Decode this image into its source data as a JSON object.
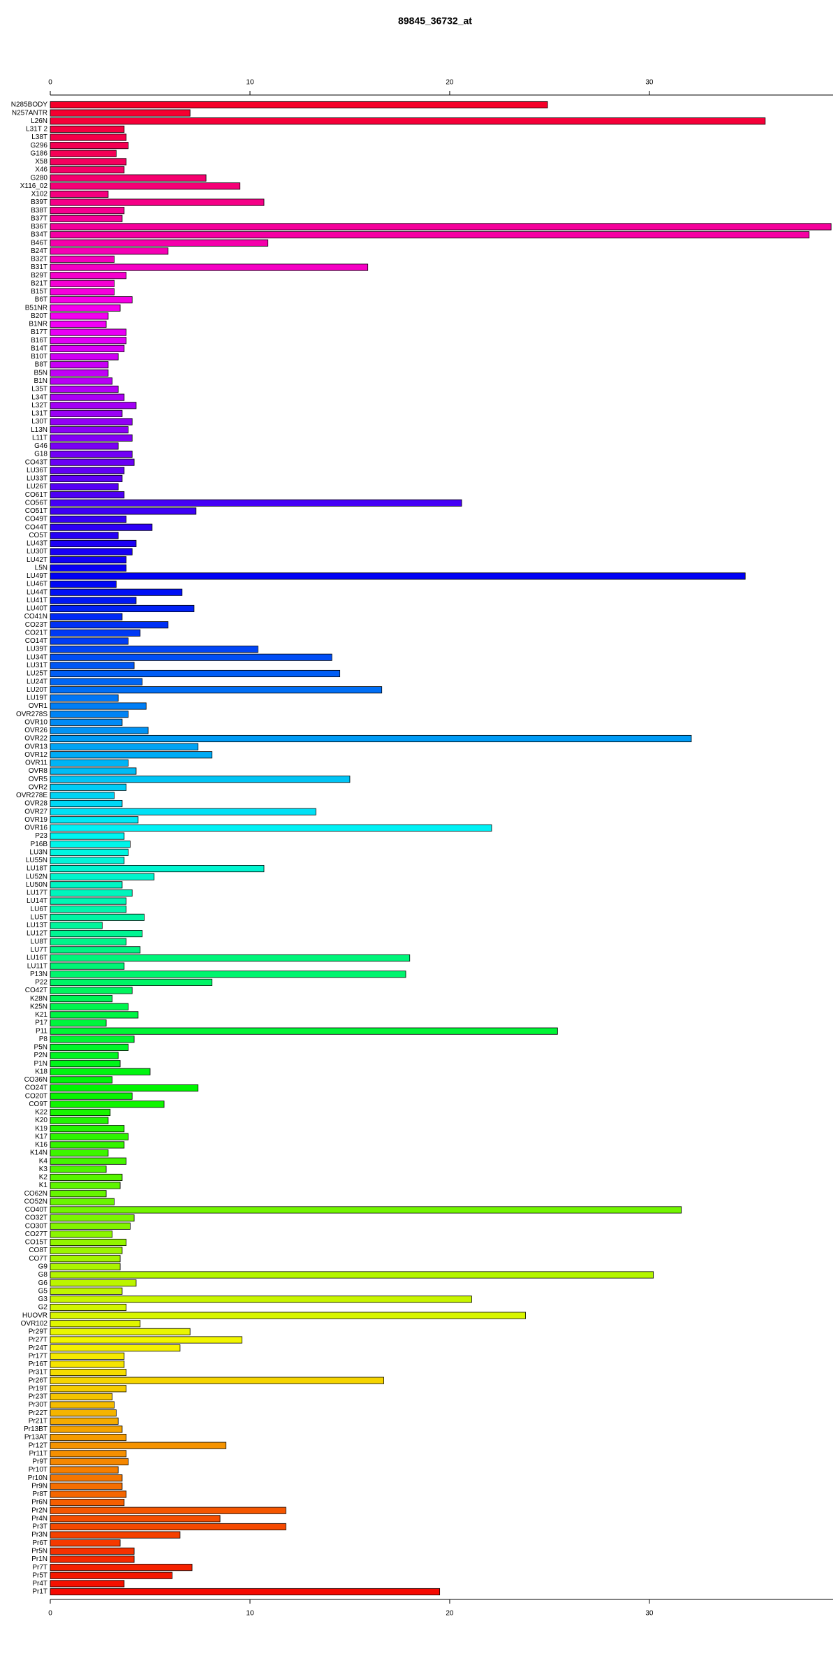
{
  "chart_data": {
    "type": "barh",
    "title": "89845_36732_at",
    "categories": [
      "N285BODY",
      "N257ANTR",
      "L26N",
      "L31T 2",
      "L38T",
      "G296",
      "G186",
      "X58",
      "X46",
      "G280",
      "X116_02",
      "X102",
      "B39T",
      "B38T",
      "B37T",
      "B36T",
      "B34T",
      "B46T",
      "B24T",
      "B32T",
      "B31T",
      "B29T",
      "B21T",
      "B15T",
      "B6T",
      "B51NR",
      "B20T",
      "B1NR",
      "B17T",
      "B16T",
      "B14T",
      "B10T",
      "B8T",
      "B5N",
      "B1N",
      "L35T",
      "L34T",
      "L32T",
      "L31T",
      "L30T",
      "L13N",
      "L11T",
      "G46",
      "G18",
      "CO43T",
      "LU36T",
      "LU33T",
      "LU26T",
      "CO61T",
      "CO56T",
      "CO51T",
      "CO49T",
      "CO44T",
      "CO5T",
      "LU43T",
      "LU30T",
      "LU42T",
      "L5N",
      "LU49T",
      "LU46T",
      "LU44T",
      "LU41T",
      "LU40T",
      "CO41N",
      "CO23T",
      "CO21T",
      "CO14T",
      "LU39T",
      "LU34T",
      "LU31T",
      "LU25T",
      "LU24T",
      "LU20T",
      "LU19T",
      "OVR1",
      "OVR278S",
      "OVR10",
      "OVR26",
      "OVR22",
      "OVR13",
      "OVR12",
      "OVR11",
      "OVR8",
      "OVR5",
      "OVR2",
      "OVR278E",
      "OVR28",
      "OVR27",
      "OVR19",
      "OVR16",
      "P23",
      "P16B",
      "LU3N",
      "LU55N",
      "LU18T",
      "LU52N",
      "LU50N",
      "LU17T",
      "LU14T",
      "LU6T",
      "LU5T",
      "LU13T",
      "LU12T",
      "LU8T",
      "LU7T",
      "LU16T",
      "LU11T",
      "P13N",
      "P22",
      "CO42T",
      "K28N",
      "K25N",
      "K21",
      "P17",
      "P11",
      "P8",
      "P5N",
      "P2N",
      "P1N",
      "K18",
      "CO36N",
      "CO24T",
      "CO20T",
      "CO9T",
      "K22",
      "K20",
      "K19",
      "K17",
      "K16",
      "K14N",
      "K4",
      "K3",
      "K2",
      "K1",
      "CO62N",
      "CO52N",
      "CO40T",
      "CO32T",
      "CO30T",
      "CO27T",
      "CO15T",
      "CO8T",
      "CO7T",
      "G9",
      "G8",
      "G6",
      "G5",
      "G3",
      "G2",
      "HUOVR",
      "OVR102",
      "Pr29T",
      "Pr27T",
      "Pr24T",
      "Pr17T",
      "Pr16T",
      "Pr31T",
      "Pr26T",
      "Pr19T",
      "Pr23T",
      "Pr30T",
      "Pr22T",
      "Pr21T",
      "Pr13BT",
      "Pr13AT",
      "Pr12T",
      "Pr11T",
      "Pr9T",
      "Pr10T",
      "Pr10N",
      "Pr9N",
      "Pr8T",
      "Pr6N",
      "Pr2N",
      "Pr4N",
      "Pr3T",
      "Pr3N",
      "Pr6T",
      "Pr5N",
      "Pr1N",
      "Pr7T",
      "Pr5T",
      "Pr4T",
      "Pr1T"
    ],
    "values": [
      24.9,
      7.0,
      35.8,
      3.7,
      3.8,
      3.9,
      3.3,
      3.8,
      3.7,
      7.8,
      9.5,
      2.9,
      10.7,
      3.7,
      3.6,
      39.1,
      38.0,
      10.9,
      5.9,
      3.2,
      15.9,
      3.8,
      3.2,
      3.2,
      4.1,
      3.5,
      2.9,
      2.8,
      3.8,
      3.8,
      3.7,
      3.4,
      2.9,
      2.9,
      3.1,
      3.4,
      3.7,
      4.3,
      3.6,
      4.1,
      3.9,
      4.1,
      3.4,
      4.1,
      4.2,
      3.7,
      3.6,
      3.4,
      3.7,
      20.6,
      7.3,
      3.8,
      5.1,
      3.4,
      4.3,
      4.1,
      3.8,
      3.8,
      34.8,
      3.3,
      6.6,
      4.3,
      7.2,
      3.6,
      5.9,
      4.5,
      3.9,
      10.4,
      14.1,
      4.2,
      14.5,
      4.6,
      16.6,
      3.4,
      4.8,
      3.9,
      3.6,
      4.9,
      32.1,
      7.4,
      8.1,
      3.9,
      4.3,
      15.0,
      3.8,
      3.2,
      3.6,
      13.3,
      4.4,
      22.1,
      3.7,
      4.0,
      3.9,
      3.7,
      10.7,
      5.2,
      3.6,
      4.1,
      3.8,
      3.8,
      4.7,
      2.6,
      4.6,
      3.8,
      4.5,
      18.0,
      3.7,
      17.8,
      8.1,
      4.1,
      3.1,
      3.9,
      4.4,
      2.8,
      25.4,
      4.2,
      3.9,
      3.4,
      3.5,
      5.0,
      3.1,
      7.4,
      4.1,
      5.7,
      3.0,
      2.9,
      3.7,
      3.9,
      3.7,
      2.9,
      3.8,
      2.8,
      3.6,
      3.5,
      2.8,
      3.2,
      31.6,
      4.2,
      4.0,
      3.1,
      3.8,
      3.6,
      3.5,
      3.5,
      30.2,
      4.3,
      3.6,
      21.1,
      3.8,
      23.8,
      4.5,
      7.0,
      9.6,
      6.5,
      3.7,
      3.7,
      3.8,
      16.7,
      3.8,
      3.1,
      3.2,
      3.3,
      3.4,
      3.6,
      3.8,
      8.8,
      3.8,
      3.9,
      3.4,
      3.6,
      3.6,
      3.8,
      3.7,
      11.8,
      8.5,
      11.8,
      6.5,
      3.5,
      4.2,
      4.2,
      7.1,
      6.1,
      3.7,
      19.5
    ],
    "colors": [
      "hsl(350,100%,48%)",
      "hsl(348,100%,48%)",
      "hsl(346,100%,48%)",
      "hsl(344,100%,48%)",
      "hsl(342,100%,48%)",
      "hsl(340,100%,48%)",
      "hsl(339,100%,48%)",
      "hsl(337,100%,48%)",
      "hsl(335,100%,48%)",
      "hsl(333,100%,48%)",
      "hsl(331,100%,48%)",
      "hsl(329,100%,48%)",
      "hsl(327,100%,48%)",
      "hsl(325,100%,48%)",
      "hsl(323,100%,48%)",
      "hsl(322,100%,48%)",
      "hsl(320,100%,48%)",
      "hsl(318,100%,48%)",
      "hsl(316,100%,48%)",
      "hsl(314,100%,48%)",
      "hsl(312,100%,48%)",
      "hsl(310,100%,48%)",
      "hsl(308,100%,48%)",
      "hsl(306,100%,48%)",
      "hsl(304,100%,48%)",
      "hsl(302,100%,48%)",
      "hsl(301,100%,48%)",
      "hsl(299,100%,48%)",
      "hsl(297,100%,48%)",
      "hsl(295,100%,48%)",
      "hsl(293,100%,48%)",
      "hsl(291,100%,48%)",
      "hsl(289,100%,48%)",
      "hsl(287,100%,48%)",
      "hsl(285,100%,48%)",
      "hsl(284,100%,48%)",
      "hsl(282,100%,48%)",
      "hsl(280,100%,48%)",
      "hsl(278,100%,48%)",
      "hsl(276,100%,48%)",
      "hsl(274,100%,48%)",
      "hsl(272,100%,48%)",
      "hsl(270,100%,48%)",
      "hsl(268,100%,48%)",
      "hsl(266,100%,48%)",
      "hsl(264,100%,48%)",
      "hsl(263,100%,48%)",
      "hsl(261,100%,48%)",
      "hsl(259,100%,48%)",
      "hsl(257,100%,48%)",
      "hsl(255,100%,48%)",
      "hsl(253,100%,48%)",
      "hsl(251,100%,48%)",
      "hsl(249,100%,48%)",
      "hsl(247,100%,48%)",
      "hsl(246,100%,48%)",
      "hsl(244,100%,48%)",
      "hsl(242,100%,48%)",
      "hsl(240,100%,48%)",
      "hsl(238,100%,48%)",
      "hsl(236,100%,48%)",
      "hsl(234,100%,48%)",
      "hsl(232,100%,48%)",
      "hsl(230,100%,48%)",
      "hsl(228,100%,48%)",
      "hsl(226,100%,48%)",
      "hsl(225,100%,48%)",
      "hsl(223,100%,48%)",
      "hsl(221,100%,48%)",
      "hsl(219,100%,48%)",
      "hsl(217,100%,48%)",
      "hsl(215,100%,48%)",
      "hsl(213,100%,48%)",
      "hsl(211,100%,48%)",
      "hsl(209,100%,48%)",
      "hsl(208,100%,48%)",
      "hsl(206,100%,48%)",
      "hsl(204,100%,48%)",
      "hsl(202,100%,48%)",
      "hsl(200,100%,48%)",
      "hsl(198,100%,48%)",
      "hsl(196,100%,48%)",
      "hsl(194,100%,48%)",
      "hsl(192,100%,48%)",
      "hsl(190,100%,48%)",
      "hsl(188,100%,48%)",
      "hsl(187,100%,48%)",
      "hsl(185,100%,48%)",
      "hsl(183,100%,48%)",
      "hsl(181,100%,48%)",
      "hsl(179,100%,48%)",
      "hsl(177,100%,48%)",
      "hsl(175,100%,48%)",
      "hsl(173,100%,48%)",
      "hsl(171,100%,48%)",
      "hsl(170,100%,48%)",
      "hsl(168,100%,48%)",
      "hsl(166,100%,48%)",
      "hsl(164,100%,48%)",
      "hsl(162,100%,48%)",
      "hsl(160,100%,48%)",
      "hsl(158,100%,48%)",
      "hsl(156,100%,48%)",
      "hsl(154,100%,48%)",
      "hsl(152,100%,48%)",
      "hsl(150,100%,48%)",
      "hsl(149,100%,48%)",
      "hsl(147,100%,48%)",
      "hsl(145,100%,48%)",
      "hsl(143,100%,48%)",
      "hsl(141,100%,48%)",
      "hsl(139,100%,48%)",
      "hsl(137,100%,48%)",
      "hsl(135,100%,48%)",
      "hsl(133,100%,48%)",
      "hsl(132,100%,48%)",
      "hsl(130,100%,48%)",
      "hsl(128,100%,48%)",
      "hsl(126,100%,48%)",
      "hsl(124,100%,48%)",
      "hsl(122,100%,48%)",
      "hsl(120,100%,48%)",
      "hsl(118,100%,48%)",
      "hsl(116,100%,48%)",
      "hsl(114,100%,48%)",
      "hsl(112,100%,48%)",
      "hsl(111,100%,48%)",
      "hsl(109,100%,48%)",
      "hsl(107,100%,48%)",
      "hsl(105,100%,48%)",
      "hsl(103,100%,48%)",
      "hsl(101,100%,48%)",
      "hsl(99,100%,48%)",
      "hsl(97,100%,48%)",
      "hsl(95,100%,48%)",
      "hsl(94,100%,48%)",
      "hsl(92,100%,48%)",
      "hsl(90,100%,48%)",
      "hsl(88,100%,48%)",
      "hsl(86,100%,48%)",
      "hsl(84,100%,48%)",
      "hsl(82,100%,48%)",
      "hsl(80,100%,48%)",
      "hsl(78,100%,48%)",
      "hsl(76,100%,48%)",
      "hsl(74,100%,48%)",
      "hsl(73,100%,48%)",
      "hsl(71,100%,48%)",
      "hsl(69,100%,48%)",
      "hsl(67,100%,48%)",
      "hsl(65,100%,48%)",
      "hsl(63,100%,48%)",
      "hsl(61,100%,48%)",
      "hsl(59,100%,48%)",
      "hsl(57,100%,48%)",
      "hsl(56,100%,48%)",
      "hsl(54,100%,48%)",
      "hsl(52,100%,48%)",
      "hsl(50,100%,48%)",
      "hsl(48,100%,48%)",
      "hsl(46,100%,48%)",
      "hsl(44,100%,48%)",
      "hsl(42,100%,48%)",
      "hsl(40,100%,48%)",
      "hsl(38,100%,48%)",
      "hsl(36,100%,48%)",
      "hsl(35,100%,48%)",
      "hsl(33,100%,48%)",
      "hsl(31,100%,48%)",
      "hsl(29,100%,48%)",
      "hsl(27,100%,48%)",
      "hsl(25,100%,48%)",
      "hsl(23,100%,48%)",
      "hsl(21,100%,48%)",
      "hsl(19,100%,48%)",
      "hsl(18,100%,48%)",
      "hsl(16,100%,48%)",
      "hsl(14,100%,48%)",
      "hsl(12,100%,48%)",
      "hsl(10,100%,48%)",
      "hsl(8,100%,48%)",
      "hsl(6,100%,48%)",
      "hsl(4,100%,48%)",
      "hsl(2,100%,48%)"
    ],
    "xlim": [
      0,
      39.2
    ],
    "xticks": [
      0,
      10,
      20,
      30
    ]
  }
}
